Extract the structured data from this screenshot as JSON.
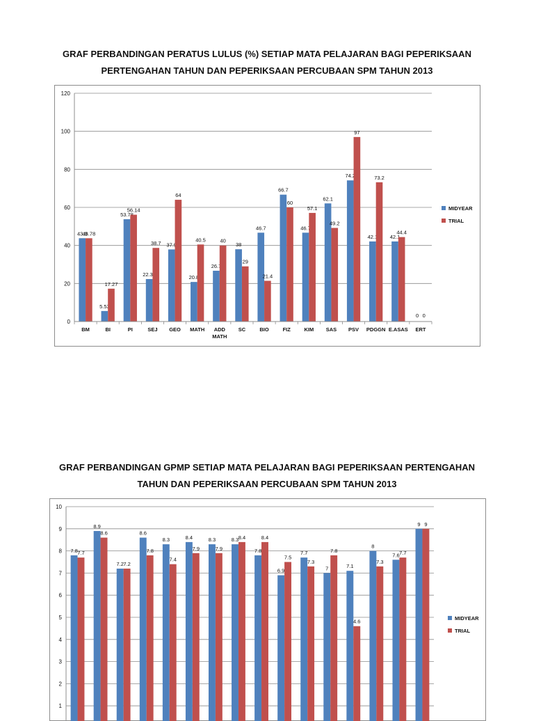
{
  "charts": [
    {
      "title_lines": [
        "GRAF PERBANDINGAN PERATUS LULUS (%)  SETIAP MATA PELAJARAN BAGI PEPERIKSAAN",
        "PERTENGAHAN TAHUN DAN PEPERIKSAAN PERCUBAAN SPM TAHUN 2013"
      ],
      "yticks": [
        "0",
        "20",
        "40",
        "60",
        "80",
        "100",
        "120"
      ],
      "legend": [
        "MIDYEAR",
        "TRIAL"
      ]
    },
    {
      "title_lines": [
        "GRAF PERBANDINGAN GPMP SETIAP MATA PELAJARAN BAGI PEPERIKSAAN PERTENGAHAN",
        "TAHUN DAN PEPERIKSAAN PERCUBAAN SPM TAHUN 2013"
      ],
      "yticks": [
        "1",
        "2",
        "3",
        "4",
        "5",
        "6",
        "7",
        "8",
        "9",
        "10"
      ],
      "legend": [
        "MIDYEAR",
        "TRIAL"
      ]
    }
  ],
  "colors": {
    "midyear": "#4f81bd",
    "trial": "#c0504d",
    "grid": "#8c8c8c"
  },
  "chart_data": [
    {
      "type": "bar",
      "title": "GRAF PERBANDINGAN PERATUS LULUS (%)  SETIAP MATA PELAJARAN BAGI PEPERIKSAAN PERTENGAHAN TAHUN DAN PEPERIKSAAN PERCUBAAN SPM TAHUN 2013",
      "categories": [
        "BM",
        "BI",
        "PI",
        "SEJ",
        "GEO",
        "MATH",
        "ADD MATH",
        "SC",
        "BIO",
        "FIZ",
        "KIM",
        "SAS",
        "PSV",
        "PDGGN",
        "E.ASAS",
        "ERT"
      ],
      "series": [
        {
          "name": "MIDYEAR",
          "values": [
            43.8,
            5.53,
            53.78,
            22.33,
            37.9,
            20.8,
            26.7,
            38,
            46.7,
            66.7,
            46.7,
            62.1,
            74.2,
            42.1,
            42.1,
            0
          ]
        },
        {
          "name": "TRIAL",
          "values": [
            43.78,
            17.27,
            56.14,
            38.7,
            64,
            40.5,
            40,
            29,
            21.4,
            60,
            57.1,
            49.2,
            97,
            73.2,
            44.4,
            0
          ]
        }
      ],
      "value_labels": [
        [
          "43.8",
          "5.53",
          "53.78",
          "22.33",
          "37.9",
          "20.8",
          "26.7",
          "38",
          "46.7",
          "66.7",
          "46.7",
          "62.1",
          "74.2",
          "42.1",
          "42.1",
          "0"
        ],
        [
          "43.78",
          "17.27",
          "56.14",
          "38.7",
          "64",
          "40.5",
          "40",
          "29",
          "21.4",
          "60",
          "57.1",
          "49.2",
          "97",
          "73.2",
          "44.4",
          "0"
        ]
      ],
      "ylim": [
        0,
        120
      ],
      "grid": true,
      "legend_position": "right"
    },
    {
      "type": "bar",
      "title": "GRAF PERBANDINGAN GPMP SETIAP MATA PELAJARAN BAGI PEPERIKSAAN PERTENGAHAN TAHUN DAN PEPERIKSAAN PERCUBAAN SPM TAHUN 2013",
      "series": [
        {
          "name": "MIDYEAR",
          "values": [
            7.8,
            8.9,
            7.2,
            8.6,
            8.3,
            8.4,
            8.3,
            8.3,
            7.8,
            6.9,
            7.7,
            7,
            7.1,
            8,
            7.6,
            9
          ]
        },
        {
          "name": "TRIAL",
          "values": [
            7.7,
            8.6,
            7.2,
            7.8,
            7.4,
            7.9,
            7.9,
            8.4,
            8.4,
            7.5,
            7.3,
            7.8,
            4.6,
            7.3,
            7.7,
            9
          ]
        }
      ],
      "value_labels": [
        [
          "7.8",
          "8.9",
          "7.2",
          "8.6",
          "8.3",
          "8.4",
          "8.3",
          "8.3",
          "7.8",
          "6.9",
          "7.7",
          "7",
          "7.1",
          "8",
          "7.6",
          "9"
        ],
        [
          "7.7",
          "8.6",
          "7.2",
          "7.8",
          "7.4",
          "7.9",
          "7.9",
          "8.4",
          "8.4",
          "7.5",
          "7.3",
          "7.8",
          "4.6",
          "7.3",
          "7.7",
          "9"
        ]
      ],
      "ylim": [
        0,
        10
      ],
      "grid": true,
      "legend_position": "right"
    }
  ]
}
